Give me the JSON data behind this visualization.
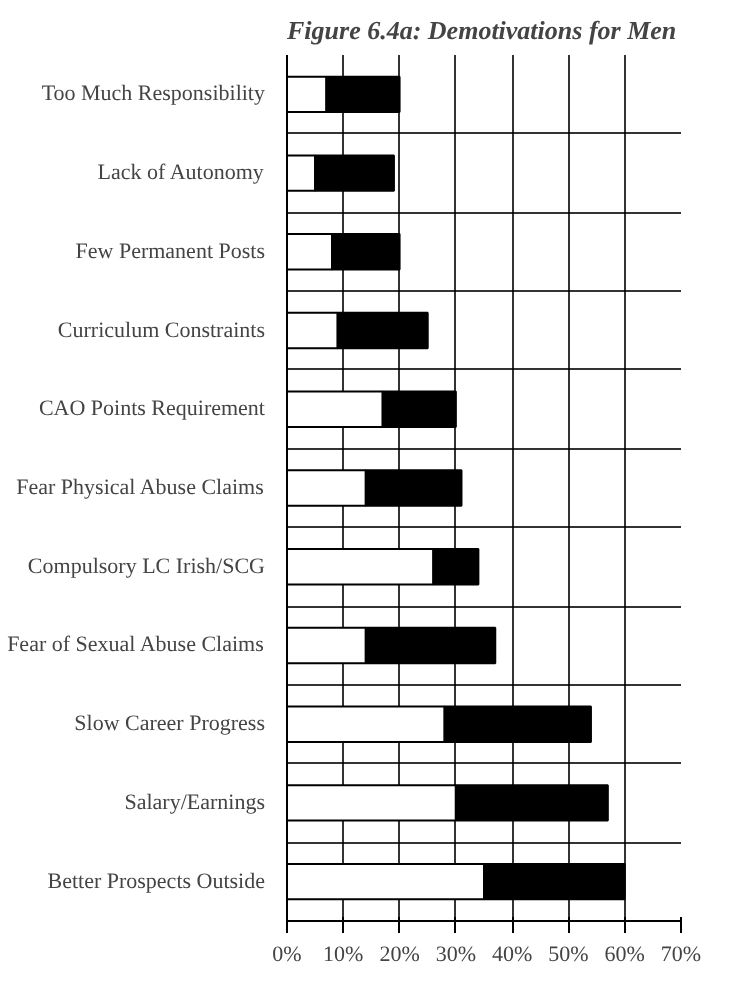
{
  "chart_data": {
    "type": "bar",
    "orientation": "horizontal",
    "stacked": true,
    "title": "Figure 6.4a: Demotivations for Men",
    "categories": [
      "Too Much Responsibility",
      "Lack of Autonomy",
      "Few Permanent Posts",
      "Curriculum Constraints",
      "CAO Points Requirement",
      "Fear Physical Abuse Claims",
      "Compulsory LC Irish/SCG",
      "Fear of Sexual Abuse Claims",
      "Slow Career Progress",
      "Salary/Earnings",
      "Better Prospects Outside"
    ],
    "series": [
      {
        "color": "#ffffff",
        "values": [
          7,
          5,
          8,
          9,
          17,
          14,
          26,
          14,
          28,
          30,
          35
        ]
      },
      {
        "color": "#000000",
        "values": [
          13,
          14,
          12,
          16,
          13,
          17,
          8,
          23,
          26,
          27,
          25
        ]
      }
    ],
    "xlim": [
      0,
      70
    ],
    "xticks": [
      {
        "value": 0,
        "label": "0%"
      },
      {
        "value": 10,
        "label": "10%"
      },
      {
        "value": 20,
        "label": "20%"
      },
      {
        "value": 30,
        "label": "30%"
      },
      {
        "value": 40,
        "label": "40%"
      },
      {
        "value": 50,
        "label": "50%"
      },
      {
        "value": 60,
        "label": "60%"
      },
      {
        "value": 70,
        "label": "70%"
      }
    ],
    "grid": true
  }
}
